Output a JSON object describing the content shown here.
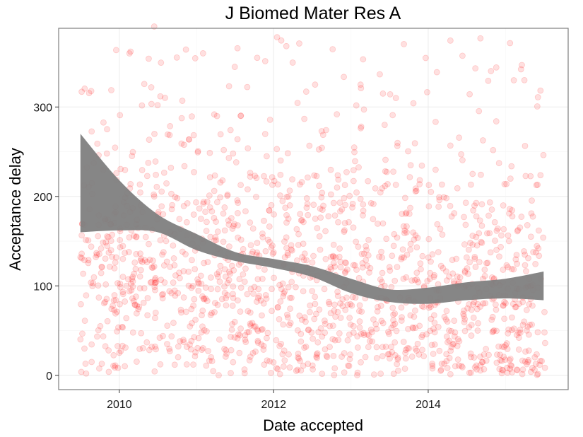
{
  "chart_data": {
    "type": "scatter",
    "title": "J Biomed Mater Res A",
    "xlabel": "Date accepted",
    "ylabel": "Acceptance delay",
    "x_ticks": [
      "2010",
      "2012",
      "2014"
    ],
    "y_ticks": [
      "0",
      "100",
      "200",
      "300"
    ],
    "xlim": [
      "2009-03-20",
      "2015-10-25"
    ],
    "ylim": [
      -16,
      388
    ],
    "grid": true,
    "point_color": "#ff0000",
    "point_opacity": 0.12,
    "band_color": "#7f7f7f",
    "point_count_approx": 1500,
    "points_summary": "dense cloud of points, mostly 0–250, spread from mid-2009 to mid-2015, sparse outliers up to ~390",
    "sample_points": [
      {
        "x": "2009-07-01",
        "y": 132
      },
      {
        "x": "2010-03-15",
        "y": 126
      },
      {
        "x": "2010-04-01",
        "y": 74
      },
      {
        "x": "2010-06-15",
        "y": 390
      },
      {
        "x": "2010-05-20",
        "y": 354
      },
      {
        "x": "2010-06-01",
        "y": 322
      },
      {
        "x": "2010-07-01",
        "y": 302
      },
      {
        "x": "2011-02-01",
        "y": 360
      },
      {
        "x": "2011-10-15",
        "y": 355
      },
      {
        "x": "2012-03-01",
        "y": 368
      },
      {
        "x": "2012-05-01",
        "y": 371
      },
      {
        "x": "2012-07-15",
        "y": 325
      },
      {
        "x": "2013-02-15",
        "y": 325
      },
      {
        "x": "2013-06-01",
        "y": 315
      },
      {
        "x": "2013-08-01",
        "y": 310
      },
      {
        "x": "2015-04-01",
        "y": 330
      },
      {
        "x": "2015-06-15",
        "y": 16
      },
      {
        "x": "2013-02-01",
        "y": 3
      },
      {
        "x": "2014-03-01",
        "y": 5
      },
      {
        "x": "2012-01-15",
        "y": 8
      }
    ],
    "smooth_band": {
      "x": [
        "2009-07-01",
        "2010-01-01",
        "2010-07-01",
        "2011-01-01",
        "2011-07-01",
        "2012-01-01",
        "2012-07-01",
        "2013-01-01",
        "2013-07-01",
        "2014-01-01",
        "2014-07-01",
        "2015-01-01",
        "2015-07-01"
      ],
      "upper": [
        270,
        218,
        180,
        158,
        138,
        130,
        122,
        108,
        96,
        98,
        104,
        108,
        116
      ],
      "lower": [
        160,
        162,
        160,
        140,
        128,
        120,
        110,
        92,
        82,
        80,
        84,
        86,
        84
      ]
    }
  }
}
